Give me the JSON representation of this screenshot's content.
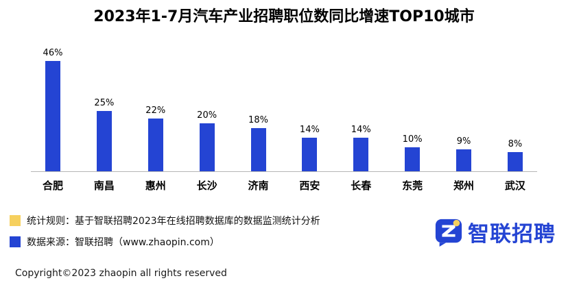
{
  "title": "2023年1-7月汽车产业招聘职位数同比增速TOP10城市",
  "chart_data": {
    "type": "bar",
    "title": "2023年1-7月汽车产业招聘职位数同比增速TOP10城市",
    "categories": [
      "合肥",
      "南昌",
      "惠州",
      "长沙",
      "济南",
      "西安",
      "长春",
      "东莞",
      "郑州",
      "武汉"
    ],
    "values": [
      46,
      25,
      22,
      20,
      18,
      14,
      14,
      10,
      9,
      8
    ],
    "value_labels": [
      "46%",
      "25%",
      "22%",
      "20%",
      "18%",
      "14%",
      "14%",
      "10%",
      "9%",
      "8%"
    ],
    "xlabel": "",
    "ylabel": "",
    "ylim": [
      0,
      50
    ],
    "grid": false,
    "legend_position": "none",
    "bar_color": "#2444d3"
  },
  "colors": {
    "bar_blue": "#2444d3",
    "legend_yellow": "#f6d05e",
    "logo_blue": "#2444d3",
    "axis_gray": "#b5b5b5"
  },
  "footer": {
    "legend_items": [
      {
        "swatch_color": "#f6d05e",
        "text": "统计规则：基于智联招聘2023年在线招聘数据库的数据监测统计分析"
      },
      {
        "swatch_color": "#2444d3",
        "text": "数据来源：智联招聘（www.zhaopin.com）"
      }
    ],
    "logo_text": "智联招聘",
    "copyright": "Copyright©2023 zhaopin all rights reserved"
  }
}
